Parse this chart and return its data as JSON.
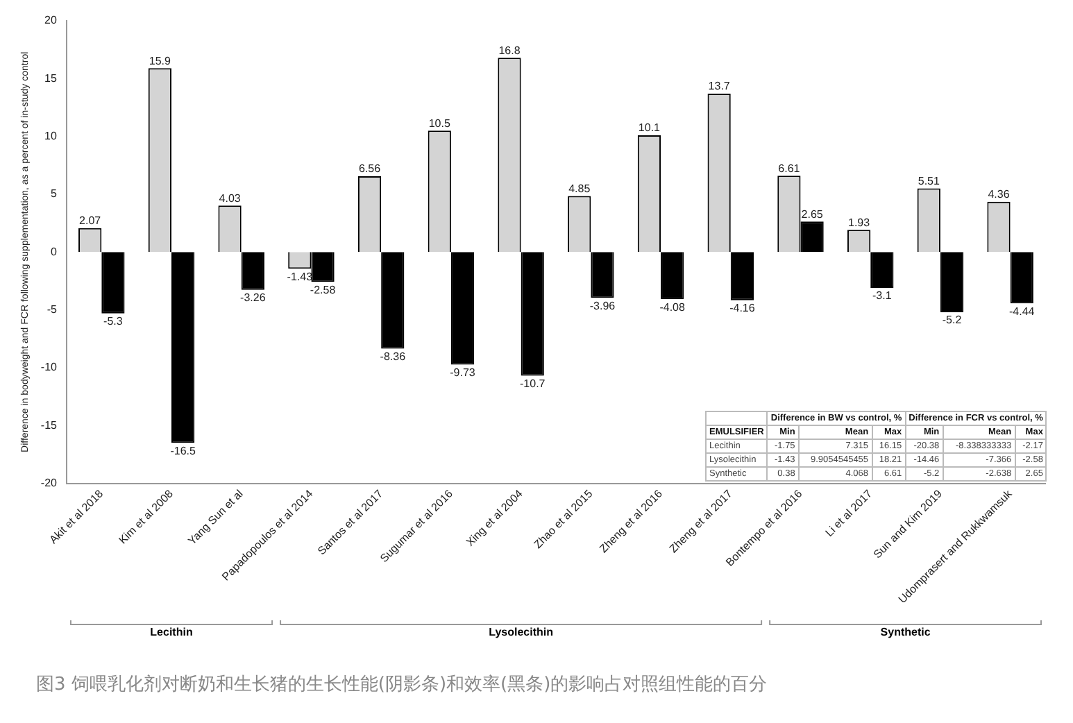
{
  "chart_data": {
    "type": "bar",
    "ylabel": "Difference in bodyweight and FCR following supplementation, as a percent of in-study control",
    "categories": [
      "Akit et al 2018",
      "Kim et al 2008",
      "Yang Sun et al",
      "Papadopoulos et al 2014",
      "Santos et al 2017",
      "Sugumar et al 2016",
      "Xing et al 2004",
      "Zhao et al 2015",
      "Zheng et al 2016",
      "Zheng et al 2017",
      "Bontempo et al 2016",
      "Li et al 2017",
      "Sun and Kim 2019",
      "Udomprasert and Rukkwamsuk"
    ],
    "series": [
      {
        "color": "#d4d4d4",
        "values": [
          2.07,
          15.9,
          4.03,
          -1.43,
          6.56,
          10.5,
          16.8,
          4.85,
          10.1,
          13.7,
          6.61,
          1.93,
          5.51,
          4.36
        ]
      },
      {
        "color": "#000000",
        "values": [
          -5.3,
          -16.5,
          -3.26,
          -2.58,
          -8.36,
          -9.73,
          -10.7,
          -3.96,
          -4.08,
          -4.16,
          2.65,
          -3.1,
          -5.2,
          -4.44
        ]
      }
    ],
    "ylim": [
      -20,
      20
    ],
    "yticks": [
      -20,
      -15,
      -10,
      -5,
      0,
      5,
      10,
      15,
      20
    ],
    "grid": false,
    "legend": false,
    "data_labels": true,
    "annotations": [
      "Lecithin",
      "Lysolecithin",
      "Synthetic",
      "Difference in BW vs control, %",
      "Difference in FCR vs control, %",
      "EMULSIFIER",
      "Min",
      "Mean",
      "Max",
      "Min",
      "Mean",
      "Max",
      "Lecithin",
      "-1.75",
      "7.315",
      "16.15",
      "-20.38",
      "-8.338333333",
      "-2.17",
      "Lysolecithin",
      "-1.43",
      "9.9054545455",
      "18.21",
      "-14.46",
      "-7.366",
      "-2.58",
      "Synthetic",
      "0.38",
      "4.068",
      "6.61",
      "-5.2",
      "-2.638",
      "2.65",
      "图3   饲喂乳化剂对断奶和生长猪的生长性能(阴影条)和效率(黑条)的影响占对照组性能的百分"
    ]
  }
}
